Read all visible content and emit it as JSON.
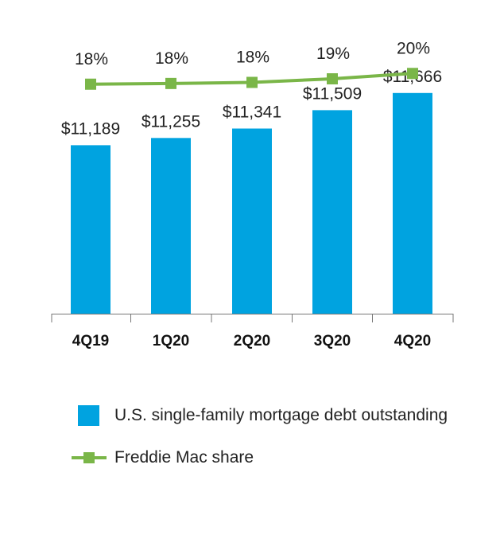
{
  "chart_data": {
    "type": "bar",
    "categories": [
      "4Q19",
      "1Q20",
      "2Q20",
      "3Q20",
      "4Q20"
    ],
    "series": [
      {
        "name": "U.S. single-family mortgage debt outstanding",
        "type": "bar",
        "values": [
          11189,
          11255,
          11341,
          11509,
          11666
        ],
        "labels": [
          "$11,189",
          "$11,255",
          "$11,341",
          "$11,509",
          "$11,666"
        ],
        "color": "#00a3e0"
      },
      {
        "name": "Freddie Mac share",
        "type": "line",
        "values": [
          17.5,
          17.7,
          18.0,
          19.0,
          20.5
        ],
        "labels": [
          "18%",
          "18%",
          "18%",
          "19%",
          "20%"
        ],
        "color": "#7ab648"
      }
    ],
    "legend_position": "bottom",
    "grid": false
  }
}
